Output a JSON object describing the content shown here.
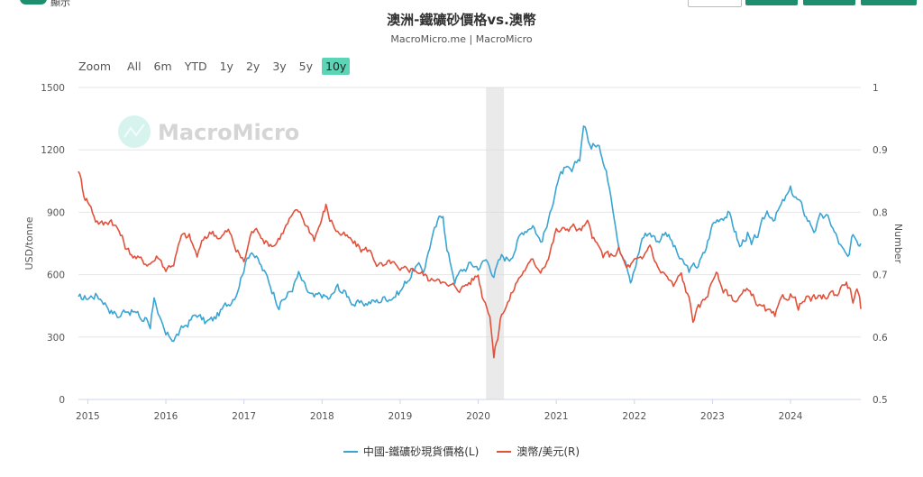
{
  "header": {
    "toggle_label": "顯示"
  },
  "zoom": {
    "label": "Zoom",
    "buttons": [
      "All",
      "6m",
      "YTD",
      "1y",
      "2y",
      "3y",
      "5y",
      "10y"
    ],
    "active": "10y"
  },
  "colors": {
    "iron": "#3aa5d3",
    "aud": "#e0523c",
    "accent": "#1e8f6e",
    "zoom_active": "#5cd4b6",
    "shade": "#d9d9d9"
  },
  "watermark": "MacroMicro",
  "chart_data": {
    "type": "line",
    "title": "澳洲-鐵礦砂價格vs.澳幣",
    "subtitle": "MacroMicro.me | MacroMicro",
    "x_tick_labels": [
      "2015",
      "2016",
      "2017",
      "2018",
      "2019",
      "2020",
      "2021",
      "2022",
      "2023",
      "2024"
    ],
    "x_range": [
      2014.88,
      2024.9
    ],
    "y_left": {
      "label": "USD/tonne",
      "range": [
        0,
        1500
      ],
      "ticks": [
        0,
        300,
        600,
        900,
        1200,
        1500
      ]
    },
    "y_right": {
      "label": "Number",
      "range": [
        0.5,
        1
      ],
      "ticks": [
        0.5,
        0.6,
        0.7,
        0.8,
        0.9,
        1
      ]
    },
    "shaded_region": [
      2020.1,
      2020.33
    ],
    "series": [
      {
        "name": "中國-鐵礦砂現貨價格(L)",
        "axis": "left",
        "points": [
          [
            2014.88,
            480
          ],
          [
            2015.0,
            490
          ],
          [
            2015.1,
            505
          ],
          [
            2015.2,
            480
          ],
          [
            2015.3,
            430
          ],
          [
            2015.4,
            400
          ],
          [
            2015.5,
            440
          ],
          [
            2015.6,
            420
          ],
          [
            2015.7,
            380
          ],
          [
            2015.75,
            390
          ],
          [
            2015.8,
            360
          ],
          [
            2015.85,
            510
          ],
          [
            2015.9,
            390
          ],
          [
            2016.0,
            300
          ],
          [
            2016.1,
            295
          ],
          [
            2016.2,
            330
          ],
          [
            2016.3,
            375
          ],
          [
            2016.4,
            410
          ],
          [
            2016.5,
            370
          ],
          [
            2016.6,
            380
          ],
          [
            2016.7,
            420
          ],
          [
            2016.8,
            460
          ],
          [
            2016.9,
            520
          ],
          [
            2017.0,
            640
          ],
          [
            2017.1,
            730
          ],
          [
            2017.2,
            650
          ],
          [
            2017.3,
            580
          ],
          [
            2017.4,
            500
          ],
          [
            2017.45,
            460
          ],
          [
            2017.6,
            520
          ],
          [
            2017.7,
            600
          ],
          [
            2017.8,
            520
          ],
          [
            2017.9,
            480
          ],
          [
            2018.0,
            500
          ],
          [
            2018.1,
            480
          ],
          [
            2018.2,
            540
          ],
          [
            2018.3,
            510
          ],
          [
            2018.4,
            470
          ],
          [
            2018.5,
            450
          ],
          [
            2018.6,
            470
          ],
          [
            2018.7,
            470
          ],
          [
            2018.8,
            490
          ],
          [
            2018.9,
            500
          ],
          [
            2019.0,
            520
          ],
          [
            2019.1,
            580
          ],
          [
            2019.2,
            640
          ],
          [
            2019.3,
            620
          ],
          [
            2019.4,
            770
          ],
          [
            2019.5,
            860
          ],
          [
            2019.55,
            900
          ],
          [
            2019.6,
            720
          ],
          [
            2019.7,
            580
          ],
          [
            2019.8,
            620
          ],
          [
            2019.9,
            650
          ],
          [
            2020.0,
            640
          ],
          [
            2020.1,
            670
          ],
          [
            2020.2,
            610
          ],
          [
            2020.3,
            680
          ],
          [
            2020.4,
            680
          ],
          [
            2020.5,
            760
          ],
          [
            2020.6,
            820
          ],
          [
            2020.7,
            850
          ],
          [
            2020.8,
            760
          ],
          [
            2020.9,
            850
          ],
          [
            2021.0,
            1040
          ],
          [
            2021.1,
            1100
          ],
          [
            2021.2,
            1080
          ],
          [
            2021.3,
            1160
          ],
          [
            2021.35,
            1330
          ],
          [
            2021.45,
            1200
          ],
          [
            2021.55,
            1250
          ],
          [
            2021.6,
            1150
          ],
          [
            2021.7,
            1000
          ],
          [
            2021.8,
            760
          ],
          [
            2021.9,
            650
          ],
          [
            2021.95,
            550
          ],
          [
            2022.0,
            620
          ],
          [
            2022.1,
            780
          ],
          [
            2022.2,
            810
          ],
          [
            2022.3,
            760
          ],
          [
            2022.4,
            820
          ],
          [
            2022.5,
            740
          ],
          [
            2022.6,
            660
          ],
          [
            2022.7,
            620
          ],
          [
            2022.8,
            640
          ],
          [
            2022.9,
            700
          ],
          [
            2023.0,
            840
          ],
          [
            2023.1,
            880
          ],
          [
            2023.2,
            900
          ],
          [
            2023.3,
            800
          ],
          [
            2023.35,
            730
          ],
          [
            2023.45,
            800
          ],
          [
            2023.5,
            730
          ],
          [
            2023.6,
            800
          ],
          [
            2023.7,
            900
          ],
          [
            2023.8,
            880
          ],
          [
            2023.9,
            940
          ],
          [
            2024.0,
            1000
          ],
          [
            2024.05,
            980
          ],
          [
            2024.1,
            950
          ],
          [
            2024.2,
            880
          ],
          [
            2024.3,
            820
          ],
          [
            2024.4,
            880
          ],
          [
            2024.5,
            860
          ],
          [
            2024.6,
            770
          ],
          [
            2024.7,
            690
          ],
          [
            2024.75,
            670
          ],
          [
            2024.8,
            790
          ],
          [
            2024.85,
            770
          ],
          [
            2024.9,
            750
          ]
        ]
      },
      {
        "name": "澳幣/美元(R)",
        "axis": "right",
        "points": [
          [
            2014.88,
            0.87
          ],
          [
            2014.95,
            0.83
          ],
          [
            2015.0,
            0.82
          ],
          [
            2015.1,
            0.79
          ],
          [
            2015.2,
            0.78
          ],
          [
            2015.3,
            0.79
          ],
          [
            2015.4,
            0.77
          ],
          [
            2015.5,
            0.74
          ],
          [
            2015.6,
            0.73
          ],
          [
            2015.7,
            0.72
          ],
          [
            2015.8,
            0.72
          ],
          [
            2015.9,
            0.73
          ],
          [
            2016.0,
            0.71
          ],
          [
            2016.1,
            0.72
          ],
          [
            2016.2,
            0.76
          ],
          [
            2016.3,
            0.76
          ],
          [
            2016.4,
            0.73
          ],
          [
            2016.5,
            0.76
          ],
          [
            2016.6,
            0.77
          ],
          [
            2016.7,
            0.76
          ],
          [
            2016.8,
            0.77
          ],
          [
            2016.9,
            0.74
          ],
          [
            2017.0,
            0.72
          ],
          [
            2017.1,
            0.77
          ],
          [
            2017.2,
            0.77
          ],
          [
            2017.3,
            0.75
          ],
          [
            2017.4,
            0.75
          ],
          [
            2017.5,
            0.77
          ],
          [
            2017.6,
            0.79
          ],
          [
            2017.7,
            0.8
          ],
          [
            2017.8,
            0.78
          ],
          [
            2017.9,
            0.76
          ],
          [
            2018.0,
            0.79
          ],
          [
            2018.05,
            0.81
          ],
          [
            2018.1,
            0.79
          ],
          [
            2018.2,
            0.77
          ],
          [
            2018.3,
            0.76
          ],
          [
            2018.4,
            0.75
          ],
          [
            2018.5,
            0.74
          ],
          [
            2018.6,
            0.74
          ],
          [
            2018.7,
            0.72
          ],
          [
            2018.8,
            0.71
          ],
          [
            2018.9,
            0.72
          ],
          [
            2019.0,
            0.7
          ],
          [
            2019.1,
            0.71
          ],
          [
            2019.2,
            0.71
          ],
          [
            2019.3,
            0.7
          ],
          [
            2019.4,
            0.69
          ],
          [
            2019.5,
            0.7
          ],
          [
            2019.6,
            0.68
          ],
          [
            2019.7,
            0.68
          ],
          [
            2019.8,
            0.68
          ],
          [
            2019.9,
            0.69
          ],
          [
            2020.0,
            0.7
          ],
          [
            2020.05,
            0.67
          ],
          [
            2020.15,
            0.64
          ],
          [
            2020.2,
            0.57
          ],
          [
            2020.25,
            0.6
          ],
          [
            2020.3,
            0.64
          ],
          [
            2020.4,
            0.66
          ],
          [
            2020.5,
            0.69
          ],
          [
            2020.6,
            0.71
          ],
          [
            2020.7,
            0.72
          ],
          [
            2020.8,
            0.71
          ],
          [
            2020.9,
            0.73
          ],
          [
            2021.0,
            0.77
          ],
          [
            2021.1,
            0.77
          ],
          [
            2021.2,
            0.78
          ],
          [
            2021.3,
            0.77
          ],
          [
            2021.4,
            0.78
          ],
          [
            2021.5,
            0.75
          ],
          [
            2021.6,
            0.73
          ],
          [
            2021.7,
            0.73
          ],
          [
            2021.8,
            0.74
          ],
          [
            2021.9,
            0.71
          ],
          [
            2022.0,
            0.72
          ],
          [
            2022.1,
            0.72
          ],
          [
            2022.2,
            0.75
          ],
          [
            2022.3,
            0.71
          ],
          [
            2022.4,
            0.7
          ],
          [
            2022.5,
            0.68
          ],
          [
            2022.6,
            0.7
          ],
          [
            2022.7,
            0.66
          ],
          [
            2022.75,
            0.63
          ],
          [
            2022.8,
            0.64
          ],
          [
            2022.9,
            0.66
          ],
          [
            2023.0,
            0.69
          ],
          [
            2023.05,
            0.71
          ],
          [
            2023.1,
            0.68
          ],
          [
            2023.2,
            0.67
          ],
          [
            2023.3,
            0.66
          ],
          [
            2023.4,
            0.67
          ],
          [
            2023.5,
            0.67
          ],
          [
            2023.6,
            0.65
          ],
          [
            2023.7,
            0.64
          ],
          [
            2023.8,
            0.63
          ],
          [
            2023.9,
            0.66
          ],
          [
            2024.0,
            0.67
          ],
          [
            2024.1,
            0.65
          ],
          [
            2024.2,
            0.66
          ],
          [
            2024.3,
            0.66
          ],
          [
            2024.4,
            0.66
          ],
          [
            2024.5,
            0.67
          ],
          [
            2024.6,
            0.67
          ],
          [
            2024.7,
            0.69
          ],
          [
            2024.75,
            0.68
          ],
          [
            2024.8,
            0.66
          ],
          [
            2024.85,
            0.67
          ],
          [
            2024.9,
            0.645
          ]
        ]
      }
    ],
    "legend": [
      "中國-鐵礦砂現貨價格(L)",
      "澳幣/美元(R)"
    ],
    "legend_position": "bottom-center"
  }
}
